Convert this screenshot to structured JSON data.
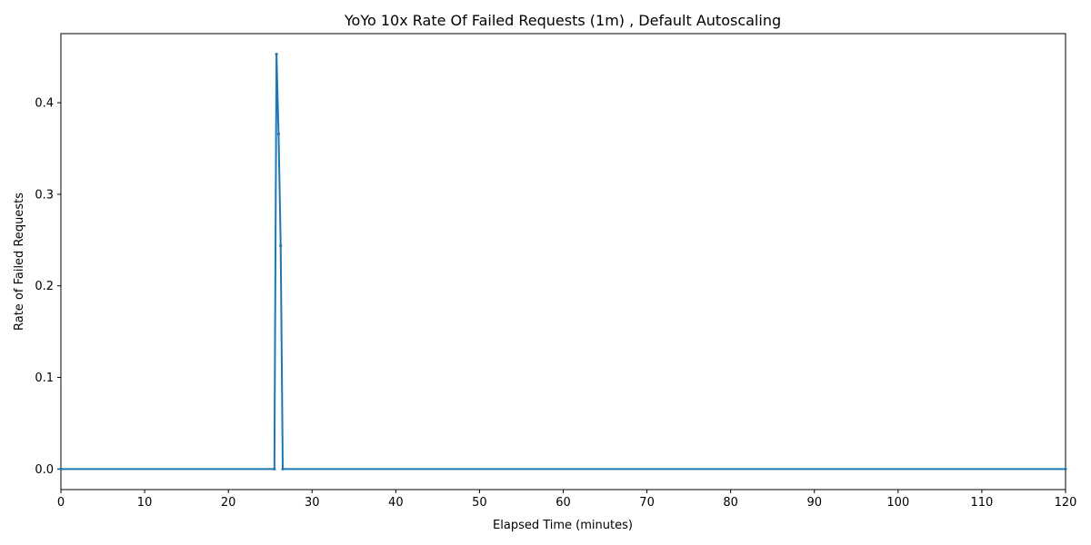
{
  "chart_data": {
    "type": "line",
    "title": "YoYo 10x Rate Of Failed Requests (1m) , Default Autoscaling",
    "xlabel": "Elapsed Time (minutes)",
    "ylabel": "Rate of Failed Requests",
    "xlim": [
      0,
      120
    ],
    "ylim": [
      -0.0225,
      0.4755
    ],
    "x_ticks": [
      0,
      10,
      20,
      30,
      40,
      50,
      60,
      70,
      80,
      90,
      100,
      110,
      120
    ],
    "y_ticks": [
      0.0,
      0.1,
      0.2,
      0.3,
      0.4
    ],
    "y_tick_labels": [
      "0.0",
      "0.1",
      "0.2",
      "0.3",
      "0.4"
    ],
    "grid": false,
    "legend": "none",
    "series": [
      {
        "color": "#1f77b4",
        "marker": "point",
        "x": [
          0,
          25.5,
          25.75,
          26.0,
          26.25,
          26.5,
          120
        ],
        "y": [
          0.0,
          0.0,
          0.453,
          0.366,
          0.244,
          0.0,
          0.0
        ]
      }
    ]
  }
}
